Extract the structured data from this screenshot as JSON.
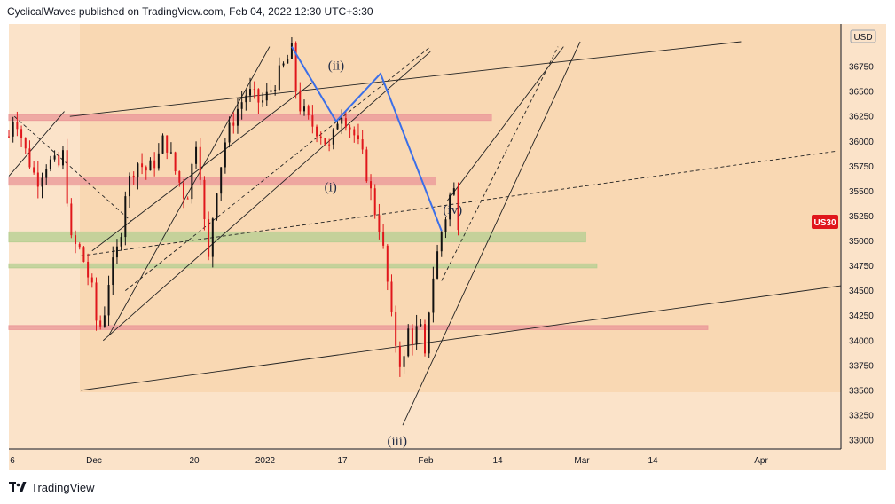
{
  "header": {
    "text": "CyclicalWaves published on TradingView.com, Feb 04, 2022 12:30 UTC+3:30"
  },
  "footer": {
    "brand": "TradingView",
    "logo_icon": "tradingview-logo-icon"
  },
  "colors": {
    "background": "#fbe3c9",
    "shaded_region": "#f8cfa1",
    "candle_up": "#111111",
    "candle_down": "#e0161b",
    "wave_line": "#3b6fe8",
    "price_badge": "#e0161b",
    "resistance_zone": "#eb9a9a",
    "support_zone": "#b8cf93"
  },
  "chart_data": {
    "type": "candlestick",
    "symbol_badge": "US30",
    "currency_label": "USD",
    "y_range": [
      33000,
      37000
    ],
    "y_ticks": [
      33000,
      33250,
      33500,
      33750,
      34000,
      34250,
      34500,
      34750,
      35000,
      35250,
      35500,
      35750,
      36000,
      36250,
      36500,
      36750
    ],
    "x_tick_labels": [
      "6",
      "Dec",
      "20",
      "2022",
      "17",
      "Feb",
      "14",
      "Mar",
      "14",
      "Apr"
    ],
    "x_range": [
      "2021-11-15",
      "2022-04-14"
    ],
    "wave_labels": [
      {
        "text": "(ii)",
        "date": "2022-01-13",
        "price": 36720
      },
      {
        "text": "(i)",
        "date": "2022-01-12",
        "price": 35500
      },
      {
        "text": "(iv)",
        "date": "2022-02-03",
        "price": 35270
      },
      {
        "text": "(iii)",
        "date": "2022-01-24",
        "price": 32950
      }
    ],
    "wave_path": [
      {
        "date": "2022-01-05",
        "price": 36950
      },
      {
        "date": "2022-01-13",
        "price": 36200
      },
      {
        "date": "2022-01-21",
        "price": 36680
      },
      {
        "date": "2022-02-01",
        "price": 35100
      }
    ],
    "zones": [
      {
        "kind": "resistance",
        "from": "2021-11-15",
        "to": "2022-02-10",
        "low": 36210,
        "high": 36270
      },
      {
        "kind": "resistance",
        "from": "2021-11-15",
        "to": "2022-01-31",
        "low": 35560,
        "high": 35640
      },
      {
        "kind": "support",
        "from": "2021-11-15",
        "to": "2022-02-27",
        "low": 34990,
        "high": 35090
      },
      {
        "kind": "support",
        "from": "2021-11-15",
        "to": "2022-03-01",
        "low": 34730,
        "high": 34770
      },
      {
        "kind": "resistance",
        "from": "2021-11-15",
        "to": "2022-03-21",
        "low": 34110,
        "high": 34150
      }
    ],
    "candles_hourly_close_path": [
      [
        "2021-11-15",
        36050
      ],
      [
        "2021-11-16",
        36300
      ],
      [
        "2021-11-18",
        35900
      ],
      [
        "2021-11-20",
        35600
      ],
      [
        "2021-11-22",
        35800
      ],
      [
        "2021-11-24",
        35750
      ],
      [
        "2021-11-25",
        35900
      ],
      [
        "2021-11-26",
        35000
      ],
      [
        "2021-11-28",
        34900
      ],
      [
        "2021-11-30",
        34500
      ],
      [
        "2021-12-01",
        34100
      ],
      [
        "2021-12-02",
        34200
      ],
      [
        "2021-12-03",
        34600
      ],
      [
        "2021-12-05",
        35000
      ],
      [
        "2021-12-06",
        35500
      ],
      [
        "2021-12-08",
        35800
      ],
      [
        "2021-12-10",
        35700
      ],
      [
        "2021-12-12",
        35850
      ],
      [
        "2021-12-13",
        36050
      ],
      [
        "2021-12-15",
        35700
      ],
      [
        "2021-12-17",
        35400
      ],
      [
        "2021-12-19",
        36100
      ],
      [
        "2021-12-20",
        35300
      ],
      [
        "2021-12-21",
        34800
      ],
      [
        "2021-12-22",
        35400
      ],
      [
        "2021-12-23",
        35700
      ],
      [
        "2021-12-24",
        36000
      ],
      [
        "2021-12-26",
        36300
      ],
      [
        "2021-12-28",
        36500
      ],
      [
        "2021-12-30",
        36400
      ],
      [
        "2021-12-31",
        36400
      ],
      [
        "2022-01-02",
        36600
      ],
      [
        "2022-01-04",
        36800
      ],
      [
        "2022-01-05",
        36900
      ],
      [
        "2022-01-06",
        36400
      ],
      [
        "2022-01-08",
        36200
      ],
      [
        "2022-01-10",
        36100
      ],
      [
        "2022-01-12",
        35900
      ],
      [
        "2022-01-13",
        36200
      ],
      [
        "2022-01-14",
        36300
      ],
      [
        "2022-01-16",
        36100
      ],
      [
        "2022-01-18",
        35800
      ],
      [
        "2022-01-20",
        35300
      ],
      [
        "2022-01-21",
        35100
      ],
      [
        "2022-01-22",
        34700
      ],
      [
        "2022-01-23",
        34200
      ],
      [
        "2022-01-24",
        33900
      ],
      [
        "2022-01-25",
        33700
      ],
      [
        "2022-01-26",
        34100
      ],
      [
        "2022-01-27",
        34000
      ],
      [
        "2022-01-28",
        34200
      ],
      [
        "2022-01-29",
        33800
      ],
      [
        "2022-01-30",
        34500
      ],
      [
        "2022-01-31",
        34800
      ],
      [
        "2022-02-01",
        35100
      ],
      [
        "2022-02-02",
        35300
      ],
      [
        "2022-02-03",
        35600
      ],
      [
        "2022-02-04",
        35200
      ]
    ]
  }
}
